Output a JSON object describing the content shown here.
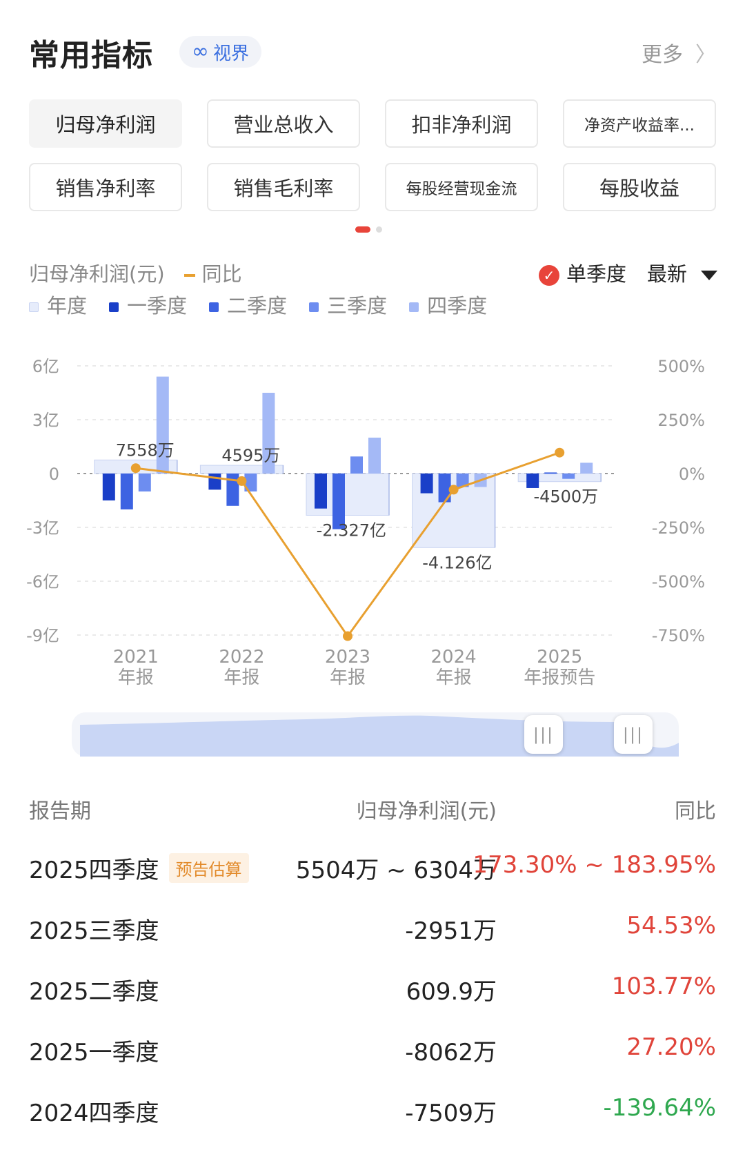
{
  "header": {
    "title": "常用指标",
    "vision_icon": "infinity-icon",
    "vision_label": "视界",
    "more_label": "更多",
    "more_icon": "chevron-right-icon"
  },
  "metrics": [
    {
      "label": "归母净利润",
      "active": true
    },
    {
      "label": "营业总收入",
      "active": false
    },
    {
      "label": "扣非净利润",
      "active": false
    },
    {
      "label": "净资产收益率...",
      "active": false
    },
    {
      "label": "销售净利率",
      "active": false
    },
    {
      "label": "销售毛利率",
      "active": false
    },
    {
      "label": "每股经营现金流",
      "active": false
    },
    {
      "label": "每股收益",
      "active": false
    }
  ],
  "pager": {
    "pages": 2,
    "current": 1
  },
  "legend": {
    "metric_label": "归母净利润(元)",
    "yoy_label": "同比",
    "single_quarter_label": "单季度",
    "latest_label": "最新",
    "series": [
      {
        "name": "年度",
        "color": "#e6ecfb"
      },
      {
        "name": "一季度",
        "color": "#1a3fc8"
      },
      {
        "name": "二季度",
        "color": "#3d63e2"
      },
      {
        "name": "三季度",
        "color": "#6d8df0"
      },
      {
        "name": "四季度",
        "color": "#a4b9f6"
      }
    ]
  },
  "chart_data": {
    "type": "bar",
    "categories": [
      [
        "2021",
        "年报"
      ],
      [
        "2022",
        "年报"
      ],
      [
        "2023",
        "年报"
      ],
      [
        "2024",
        "年报"
      ],
      [
        "2025",
        "年报预告"
      ]
    ],
    "y_left_ticks": [
      "6亿",
      "3亿",
      "0",
      "-3亿",
      "-6亿",
      "-9亿"
    ],
    "y_left_range_yi": [
      -9,
      6
    ],
    "y_right_ticks": [
      "500%",
      "250%",
      "0%",
      "-250%",
      "-500%",
      "-750%"
    ],
    "y_right_range_pct": [
      -750,
      500
    ],
    "annual_yi": [
      0.7558,
      0.4595,
      -2.327,
      -4.126,
      -0.45
    ],
    "annual_labels": [
      "7558万",
      "4595万",
      "-2.327亿",
      "-4.126亿",
      "-4500万"
    ],
    "series": [
      {
        "name": "一季度",
        "color": "#1a3fc8",
        "values": [
          -1.5,
          -0.9,
          -1.95,
          -1.1,
          -0.8062
        ]
      },
      {
        "name": "二季度",
        "color": "#3d63e2",
        "values": [
          -2.0,
          -1.8,
          -3.1,
          -1.6,
          0.06099
        ]
      },
      {
        "name": "三季度",
        "color": "#6d8df0",
        "values": [
          -1.0,
          -1.0,
          0.95,
          -0.75,
          -0.2951
        ]
      },
      {
        "name": "四季度",
        "color": "#a4b9f6",
        "values": [
          5.4,
          4.5,
          2.0,
          -0.75,
          0.6
        ]
      }
    ],
    "yoy_pct": [
      25,
      -35,
      -755,
      -75,
      97
    ],
    "grid": true
  },
  "table": {
    "headers": {
      "period": "报告期",
      "value": "归母净利润(元)",
      "yoy": "同比"
    },
    "rows": [
      {
        "period": "2025四季度",
        "tag": "预告估算",
        "value": "5504万 ~ 6304万",
        "yoy": "173.30% ~ 183.95%",
        "trend": "up"
      },
      {
        "period": "2025三季度",
        "tag": "",
        "value": "-2951万",
        "yoy": "54.53%",
        "trend": "up"
      },
      {
        "period": "2025二季度",
        "tag": "",
        "value": "609.9万",
        "yoy": "103.77%",
        "trend": "up"
      },
      {
        "period": "2025一季度",
        "tag": "",
        "value": "-8062万",
        "yoy": "27.20%",
        "trend": "up"
      },
      {
        "period": "2024四季度",
        "tag": "",
        "value": "-7509万",
        "yoy": "-139.64%",
        "trend": "down"
      }
    ]
  },
  "colors": {
    "accent_red": "#e0443a",
    "accent_green": "#2fa84f",
    "yoy_line": "#e8a030"
  }
}
